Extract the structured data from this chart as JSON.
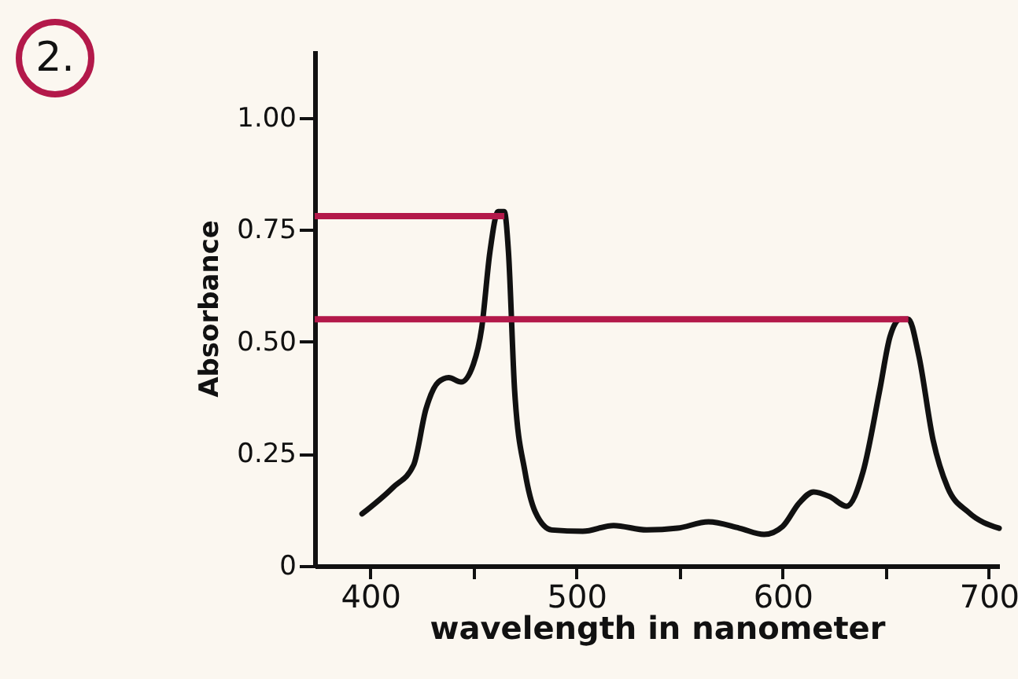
{
  "chart_data": {
    "type": "line",
    "xlabel": "wavelength in nanometer",
    "ylabel": "Absorbance",
    "annotations": [
      "2."
    ],
    "x": [
      396,
      411,
      421,
      427,
      433,
      438,
      444,
      450,
      454,
      458,
      462,
      465,
      467,
      470,
      475,
      480,
      488,
      503,
      518,
      534,
      549,
      564,
      579,
      591,
      600,
      608,
      615,
      623,
      631,
      639,
      647,
      652,
      657,
      661,
      666,
      673,
      680,
      690,
      705
    ],
    "series": [
      {
        "color": "#111111",
        "values": [
          0.116,
          0.175,
          0.225,
          0.35,
          0.41,
          0.42,
          0.41,
          0.45,
          0.53,
          0.7,
          0.79,
          0.79,
          0.7,
          0.39,
          0.21,
          0.12,
          0.08,
          0.077,
          0.09,
          0.08,
          0.084,
          0.098,
          0.084,
          0.07,
          0.088,
          0.14,
          0.165,
          0.154,
          0.133,
          0.21,
          0.39,
          0.51,
          0.55,
          0.55,
          0.47,
          0.28,
          0.175,
          0.12,
          0.084
        ]
      }
    ],
    "xlim": [
      373,
      705
    ],
    "ylim": [
      0,
      1.15
    ],
    "xticks": [
      400,
      {
        "value": 450,
        "label": null
      },
      500,
      {
        "value": 550,
        "label": null
      },
      600,
      {
        "value": 650,
        "label": null
      },
      700
    ],
    "yticks": [
      {
        "value": 0,
        "label": "0"
      },
      {
        "value": 0.25,
        "label": "0.25"
      },
      {
        "value": 0.5,
        "label": "0.50"
      },
      {
        "value": 0.75,
        "label": "0.75"
      },
      {
        "value": 1,
        "label": "1.00"
      }
    ],
    "ref_lines": [
      {
        "axis": "y",
        "value": 0.78,
        "color": "#b3194a"
      },
      {
        "axis": "y",
        "value": 0.55,
        "color": "#b3194a"
      }
    ],
    "grid": false,
    "marker": "none",
    "line_style": "solid"
  }
}
